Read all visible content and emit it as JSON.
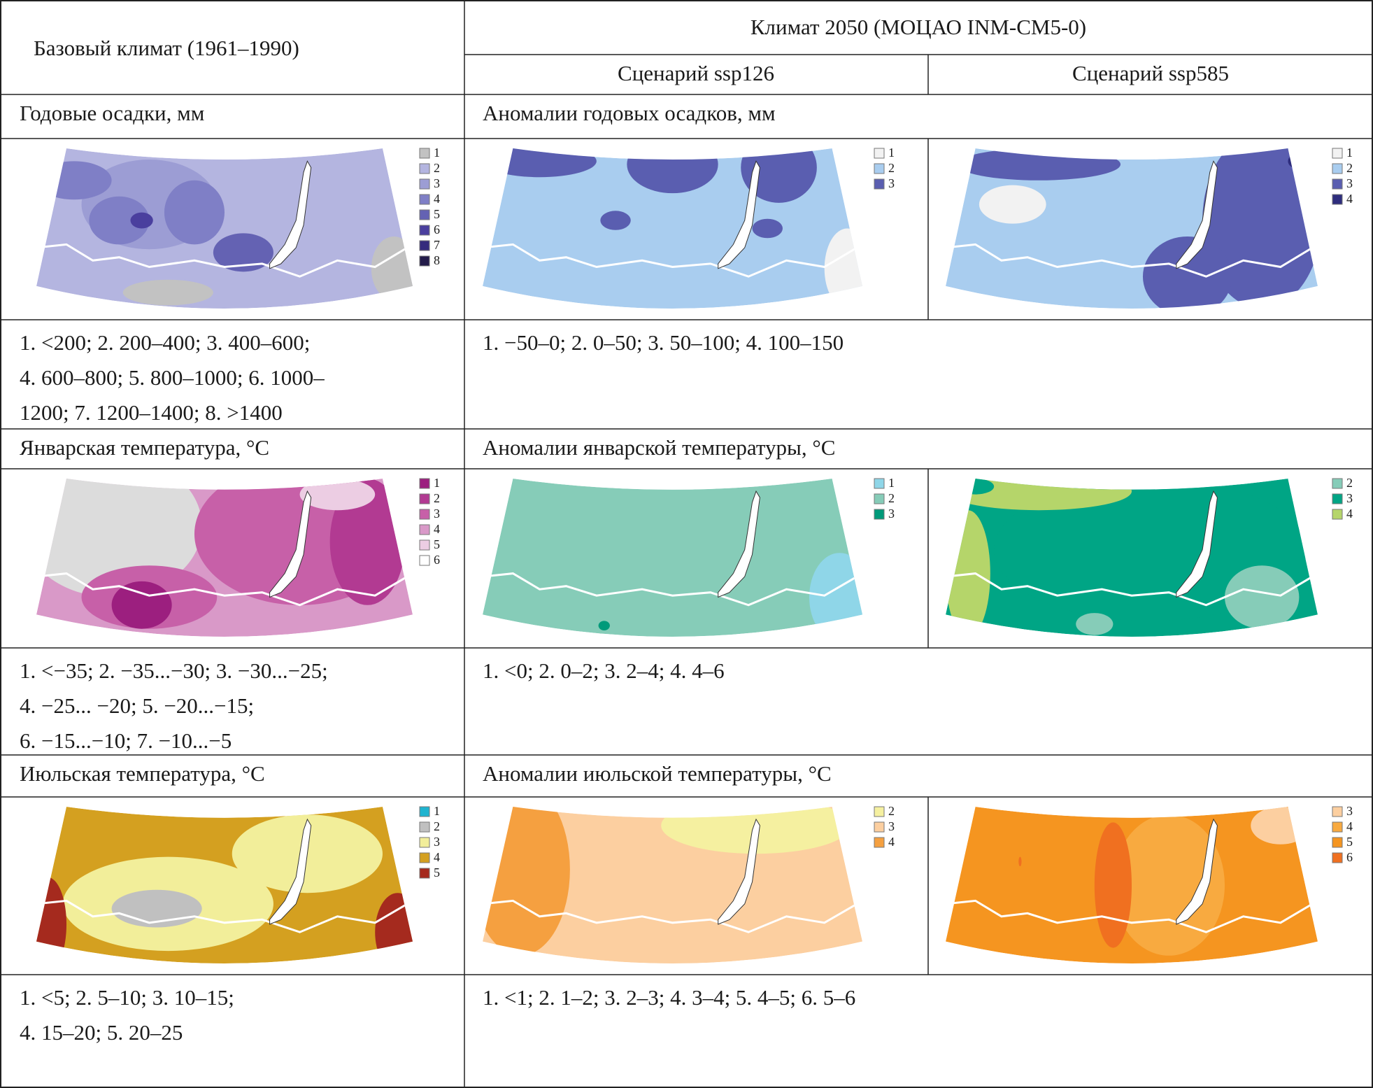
{
  "header": {
    "base": "Базовый климат (1961–1990)",
    "future": "Климат 2050 (МОЦАО INM-CM5-0)",
    "scenarios": [
      "Сценарий ssp126",
      "Сценарий ssp585"
    ]
  },
  "sections": [
    {
      "base_title": "Годовые осадки, мм",
      "anomaly_title": "Аномалии годовых осадков, мм",
      "maps": [
        {
          "legend": [
            {
              "label": "1",
              "color": "#c2c2c2"
            },
            {
              "label": "2",
              "color": "#b4b5e0"
            },
            {
              "label": "3",
              "color": "#9c9dd4"
            },
            {
              "label": "4",
              "color": "#7f7fc6"
            },
            {
              "label": "5",
              "color": "#6462b3"
            },
            {
              "label": "6",
              "color": "#4a3f9e"
            },
            {
              "label": "7",
              "color": "#352b7d"
            },
            {
              "label": "8",
              "color": "#231c4a"
            }
          ]
        },
        {
          "legend": [
            {
              "label": "1",
              "color": "#f2f2f2"
            },
            {
              "label": "2",
              "color": "#a9cdef"
            },
            {
              "label": "3",
              "color": "#5a5eb0"
            }
          ]
        },
        {
          "legend": [
            {
              "label": "1",
              "color": "#f2f2f2"
            },
            {
              "label": "2",
              "color": "#a9cdef"
            },
            {
              "label": "3",
              "color": "#5a5eb0"
            },
            {
              "label": "4",
              "color": "#2e2d7d"
            }
          ]
        }
      ],
      "base_description": [
        "1. <200; 2. 200–400; 3. 400–600;",
        "4. 600–800; 5. 800–1000; 6. 1000–",
        "1200; 7. 1200–1400; 8. >1400"
      ],
      "anomaly_description": "1. −50–0; 2. 0–50; 3. 50–100; 4. 100–150"
    },
    {
      "base_title": "Январская температура, °С",
      "anomaly_title": "Аномалии январской температуры, °С",
      "maps": [
        {
          "legend": [
            {
              "label": "1",
              "color": "#9c1f7f"
            },
            {
              "label": "2",
              "color": "#b23a92"
            },
            {
              "label": "3",
              "color": "#c760a8"
            },
            {
              "label": "4",
              "color": "#d999c8"
            },
            {
              "label": "5",
              "color": "#eccde3"
            },
            {
              "label": "6",
              "color": "#ffffff"
            }
          ]
        },
        {
          "legend": [
            {
              "label": "1",
              "color": "#8fd6e8"
            },
            {
              "label": "2",
              "color": "#86ccb8"
            },
            {
              "label": "3",
              "color": "#009a7a"
            }
          ]
        },
        {
          "legend": [
            {
              "label": "2",
              "color": "#86ccb8"
            },
            {
              "label": "3",
              "color": "#00a585"
            },
            {
              "label": "4",
              "color": "#b5d56a"
            }
          ]
        }
      ],
      "base_description": [
        "1. <−35; 2. −35...−30; 3. −30...−25;",
        "4. −25... −20; 5. −20...−15;",
        "6. −15...−10; 7. −10...−5"
      ],
      "anomaly_description": "1. <0; 2. 0–2; 3. 2–4; 4. 4–6"
    },
    {
      "base_title": "Июльская температура, °С",
      "anomaly_title": "Аномалии июльской температуры, °С",
      "maps": [
        {
          "legend": [
            {
              "label": "1",
              "color": "#1fb4d0"
            },
            {
              "label": "2",
              "color": "#c0c0c0"
            },
            {
              "label": "3",
              "color": "#f2ee9a"
            },
            {
              "label": "4",
              "color": "#d4a020"
            },
            {
              "label": "5",
              "color": "#a52a1e"
            }
          ]
        },
        {
          "legend": [
            {
              "label": "2",
              "color": "#f5f0a0"
            },
            {
              "label": "3",
              "color": "#fccfa0"
            },
            {
              "label": "4",
              "color": "#f5a040"
            }
          ]
        },
        {
          "legend": [
            {
              "label": "3",
              "color": "#fccfa0"
            },
            {
              "label": "4",
              "color": "#f8aa40"
            },
            {
              "label": "5",
              "color": "#f59520"
            },
            {
              "label": "6",
              "color": "#f07020"
            }
          ]
        }
      ],
      "base_description": [
        "1. <5; 2. 5–10; 3. 10–15;",
        "4. 15–20; 5. 20–25"
      ],
      "anomaly_description": "1. <1; 2. 1–2; 3. 2–3; 4. 3–4; 5. 4–5; 6. 5–6"
    }
  ]
}
